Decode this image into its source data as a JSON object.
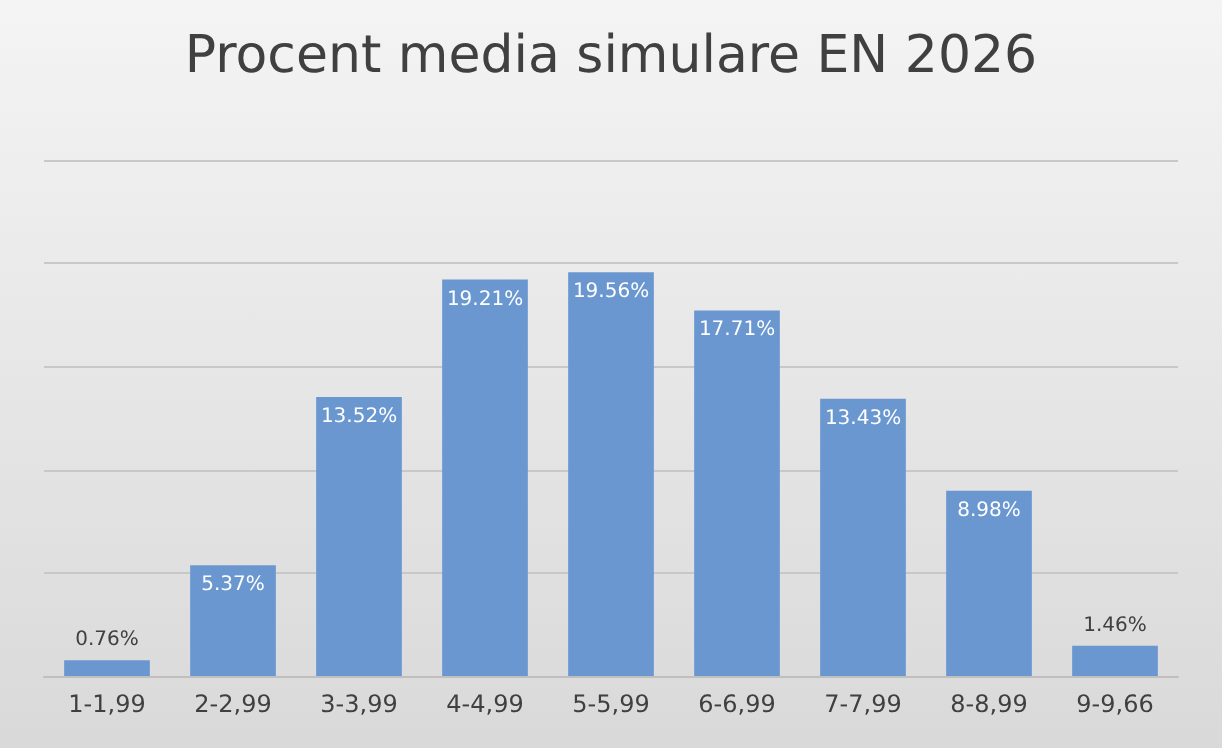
{
  "chart_data": {
    "type": "bar",
    "title": "Procent media simulare EN 2026",
    "categories": [
      "1-1,99",
      "2-2,99",
      "3-3,99",
      "4-4,99",
      "5-5,99",
      "6-6,99",
      "7-7,99",
      "8-8,99",
      "9-9,66"
    ],
    "values": [
      0.76,
      5.37,
      13.52,
      19.21,
      19.56,
      17.71,
      13.43,
      8.98,
      1.46
    ],
    "value_labels": [
      "0.76%",
      "5.37%",
      "13.52%",
      "19.21%",
      "19.56%",
      "17.71%",
      "13.43%",
      "8.98%",
      "1.46%"
    ],
    "color": "#6a97d0",
    "ylim": [
      0,
      25
    ],
    "yticks": [
      {
        "value": 0,
        "label": null
      },
      {
        "value": 5,
        "label": null
      },
      {
        "value": 10,
        "label": null
      },
      {
        "value": 15,
        "label": null
      },
      {
        "value": 20,
        "label": null
      },
      {
        "value": 25,
        "label": null
      }
    ],
    "tick_labels": "x",
    "grid": "y"
  }
}
